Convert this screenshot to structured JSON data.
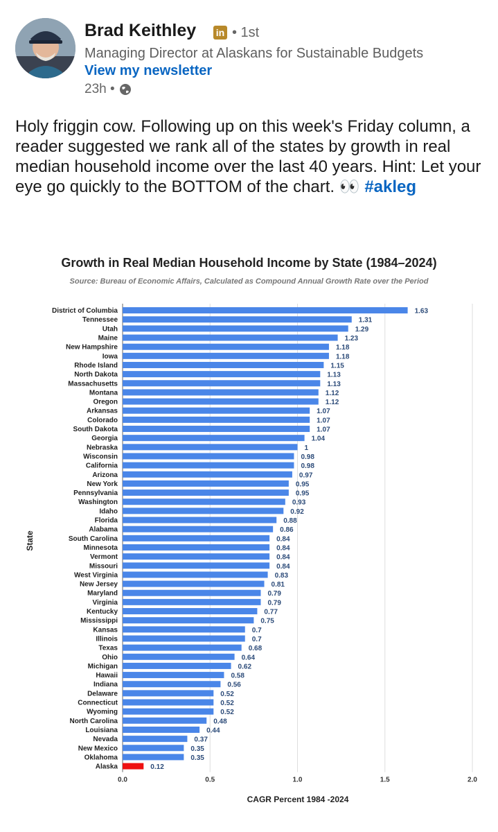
{
  "post": {
    "author_name": "Brad Keithley",
    "linkedin_badge": "in",
    "degree": "• 1st",
    "headline": "Managing Director at Alaskans for Sustainable Budgets",
    "newsletter_link": "View my newsletter",
    "time": "23h •",
    "text": "Holy friggin cow. Following up on this week's Friday column, a reader suggested we rank all of the states by growth in real median household income over the last 40 years. Hint: Let your eye go quickly to the BOTTOM of the chart. 👀",
    "hashtag": "#akleg"
  },
  "chart_data": {
    "type": "bar",
    "orientation": "horizontal",
    "title": "Growth in Real Median Household Income by State (1984–2024)",
    "subtitle": "Source: Bureau of Economic Affairs, Calculated as Compound Annual Growth Rate over the Period",
    "xlabel": "CAGR Percent 1984 -2024",
    "ylabel": "State",
    "xlim": [
      0,
      2.0
    ],
    "xticks": [
      "0.0",
      "0.5",
      "1.0",
      "1.5",
      "2.0"
    ],
    "bar_color": "#4a86e8",
    "highlight_color": "#ee1111",
    "highlight_category": "Alaska",
    "categories": [
      "District of Columbia",
      "Tennessee",
      "Utah",
      "Maine",
      "New Hampshire",
      "Iowa",
      "Rhode Island",
      "North Dakota",
      "Massachusetts",
      "Montana",
      "Oregon",
      "Arkansas",
      "Colorado",
      "South Dakota",
      "Georgia",
      "Nebraska",
      "Wisconsin",
      "California",
      "Arizona",
      "New York",
      "Pennsylvania",
      "Washington",
      "Idaho",
      "Florida",
      "Alabama",
      "South Carolina",
      "Minnesota",
      "Vermont",
      "Missouri",
      "West Virginia",
      "New Jersey",
      "Maryland",
      "Virginia",
      "Kentucky",
      "Mississippi",
      "Kansas",
      "Illinois",
      "Texas",
      "Ohio",
      "Michigan",
      "Hawaii",
      "Indiana",
      "Delaware",
      "Connecticut",
      "Wyoming",
      "North Carolina",
      "Louisiana",
      "Nevada",
      "New Mexico",
      "Oklahoma",
      "Alaska"
    ],
    "values": [
      1.63,
      1.31,
      1.29,
      1.23,
      1.18,
      1.18,
      1.15,
      1.13,
      1.13,
      1.12,
      1.12,
      1.07,
      1.07,
      1.07,
      1.04,
      1,
      0.98,
      0.98,
      0.97,
      0.95,
      0.95,
      0.93,
      0.92,
      0.88,
      0.86,
      0.84,
      0.84,
      0.84,
      0.84,
      0.83,
      0.81,
      0.79,
      0.79,
      0.77,
      0.75,
      0.7,
      0.7,
      0.68,
      0.64,
      0.62,
      0.58,
      0.56,
      0.52,
      0.52,
      0.52,
      0.48,
      0.44,
      0.37,
      0.35,
      0.35,
      0.12
    ],
    "value_labels": [
      "1.63",
      "1.31",
      "1.29",
      "1.23",
      "1.18",
      "1.18",
      "1.15",
      "1.13",
      "1.13",
      "1.12",
      "1.12",
      "1.07",
      "1.07",
      "1.07",
      "1.04",
      "1",
      "0.98",
      "0.98",
      "0.97",
      "0.95",
      "0.95",
      "0.93",
      "0.92",
      "0.88",
      "0.86",
      "0.84",
      "0.84",
      "0.84",
      "0.84",
      "0.83",
      "0.81",
      "0.79",
      "0.79",
      "0.77",
      "0.75",
      "0.7",
      "0.7",
      "0.68",
      "0.64",
      "0.62",
      "0.58",
      "0.56",
      "0.52",
      "0.52",
      "0.52",
      "0.48",
      "0.44",
      "0.37",
      "0.35",
      "0.35",
      "0.12"
    ]
  }
}
